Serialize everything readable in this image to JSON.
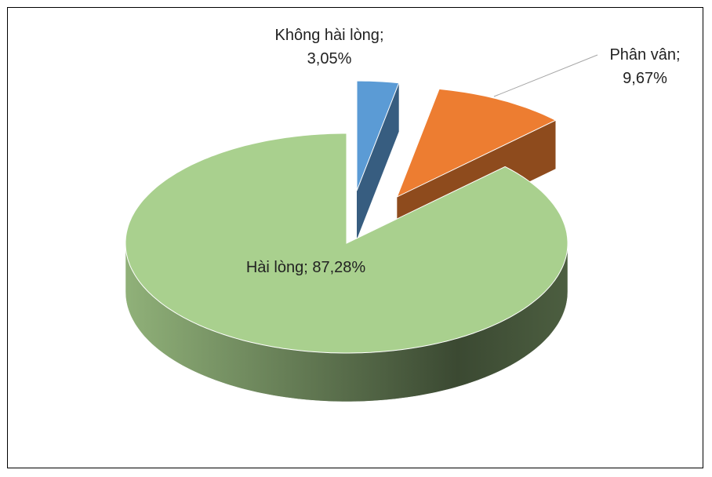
{
  "chart_data": {
    "type": "pie",
    "categories": [
      "Không hài lòng",
      "Phân vân",
      "Hài lòng"
    ],
    "values": [
      3.05,
      9.67,
      87.28
    ],
    "value_labels": [
      "3,05%",
      "9,67%",
      "87,28%"
    ],
    "label_separator": "; ",
    "colors": [
      "#5b9bd5",
      "#ed7d31",
      "#a9d08e"
    ]
  }
}
